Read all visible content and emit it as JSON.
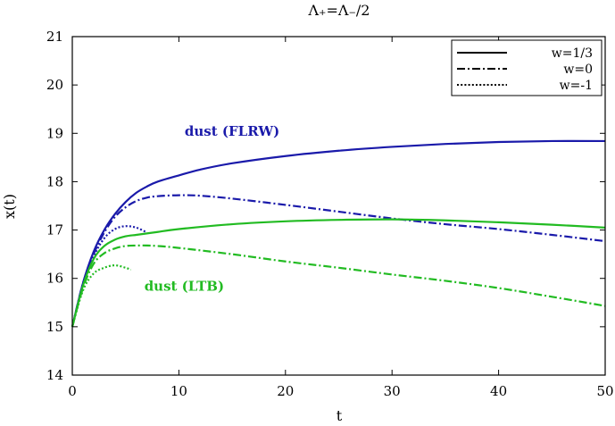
{
  "chart_data": {
    "type": "line",
    "title": "Λ₊=Λ₋/2",
    "xlabel": "t",
    "ylabel": "x(t)",
    "xlim": [
      0,
      50
    ],
    "ylim": [
      14,
      21
    ],
    "xticks": [
      0,
      10,
      20,
      30,
      40,
      50
    ],
    "yticks": [
      14,
      15,
      16,
      17,
      18,
      19,
      20,
      21
    ],
    "xtick_labels": [
      "0",
      "10",
      "20",
      "30",
      "40",
      "50"
    ],
    "ytick_labels": [
      "14",
      "15",
      "16",
      "17",
      "18",
      "19",
      "20",
      "21"
    ],
    "grid": false,
    "legend": {
      "placement": "top-right",
      "entries": [
        {
          "label": "w=1/3",
          "dash": "solid"
        },
        {
          "label": "w=0",
          "dash": "dashdot"
        },
        {
          "label": "w=-1",
          "dash": "dotted"
        }
      ]
    },
    "colors": {
      "flrw": "#1a1aaa",
      "ltb": "#22bb22",
      "axis": "#000000"
    },
    "annotations": [
      {
        "text": "dust (FLRW)",
        "x": 15.0,
        "y": 18.95,
        "color": "#1a1aaa"
      },
      {
        "text": "dust (LTB)",
        "x": 10.5,
        "y": 15.75,
        "color": "#22bb22"
      }
    ],
    "series": [
      {
        "group": "flrw",
        "dash": "solid",
        "color": "#1a1aaa",
        "points": [
          [
            0,
            15.0
          ],
          [
            1,
            15.9
          ],
          [
            2,
            16.55
          ],
          [
            3,
            17.0
          ],
          [
            4,
            17.33
          ],
          [
            5,
            17.58
          ],
          [
            6,
            17.77
          ],
          [
            7,
            17.9
          ],
          [
            8,
            18.0
          ],
          [
            10,
            18.13
          ],
          [
            12,
            18.25
          ],
          [
            15,
            18.38
          ],
          [
            20,
            18.53
          ],
          [
            25,
            18.64
          ],
          [
            30,
            18.72
          ],
          [
            35,
            18.78
          ],
          [
            40,
            18.82
          ],
          [
            45,
            18.84
          ],
          [
            50,
            18.84
          ]
        ]
      },
      {
        "group": "flrw",
        "dash": "dashdot",
        "color": "#1a1aaa",
        "points": [
          [
            0,
            15.0
          ],
          [
            1,
            15.9
          ],
          [
            2,
            16.5
          ],
          [
            3,
            16.95
          ],
          [
            4,
            17.27
          ],
          [
            5,
            17.47
          ],
          [
            6,
            17.6
          ],
          [
            7,
            17.67
          ],
          [
            8,
            17.7
          ],
          [
            10,
            17.72
          ],
          [
            12,
            17.71
          ],
          [
            15,
            17.65
          ],
          [
            20,
            17.52
          ],
          [
            25,
            17.38
          ],
          [
            30,
            17.24
          ],
          [
            35,
            17.12
          ],
          [
            40,
            17.02
          ],
          [
            45,
            16.9
          ],
          [
            50,
            16.77
          ]
        ]
      },
      {
        "group": "flrw",
        "dash": "dotted",
        "color": "#1a1aaa",
        "points": [
          [
            0,
            15.0
          ],
          [
            1,
            15.85
          ],
          [
            2,
            16.45
          ],
          [
            3,
            16.83
          ],
          [
            4,
            17.02
          ],
          [
            5,
            17.08
          ],
          [
            6,
            17.05
          ],
          [
            7,
            16.95
          ]
        ]
      },
      {
        "group": "ltb",
        "dash": "solid",
        "color": "#22bb22",
        "points": [
          [
            0,
            15.0
          ],
          [
            1,
            15.85
          ],
          [
            2,
            16.4
          ],
          [
            3,
            16.67
          ],
          [
            4,
            16.8
          ],
          [
            5,
            16.87
          ],
          [
            6,
            16.9
          ],
          [
            7,
            16.93
          ],
          [
            8,
            16.96
          ],
          [
            10,
            17.02
          ],
          [
            15,
            17.12
          ],
          [
            20,
            17.18
          ],
          [
            25,
            17.21
          ],
          [
            30,
            17.22
          ],
          [
            35,
            17.2
          ],
          [
            40,
            17.16
          ],
          [
            45,
            17.11
          ],
          [
            50,
            17.05
          ]
        ]
      },
      {
        "group": "ltb",
        "dash": "dashdot",
        "color": "#22bb22",
        "points": [
          [
            0,
            15.0
          ],
          [
            1,
            15.8
          ],
          [
            2,
            16.3
          ],
          [
            3,
            16.52
          ],
          [
            4,
            16.62
          ],
          [
            5,
            16.67
          ],
          [
            6,
            16.68
          ],
          [
            7,
            16.68
          ],
          [
            8,
            16.67
          ],
          [
            10,
            16.63
          ],
          [
            15,
            16.5
          ],
          [
            20,
            16.35
          ],
          [
            25,
            16.22
          ],
          [
            30,
            16.08
          ],
          [
            35,
            15.95
          ],
          [
            40,
            15.8
          ],
          [
            45,
            15.62
          ],
          [
            50,
            15.43
          ]
        ]
      },
      {
        "group": "ltb",
        "dash": "dotted",
        "color": "#22bb22",
        "points": [
          [
            0,
            15.0
          ],
          [
            1,
            15.75
          ],
          [
            2,
            16.1
          ],
          [
            3,
            16.22
          ],
          [
            4,
            16.27
          ],
          [
            5,
            16.22
          ],
          [
            5.5,
            16.18
          ]
        ]
      }
    ]
  }
}
